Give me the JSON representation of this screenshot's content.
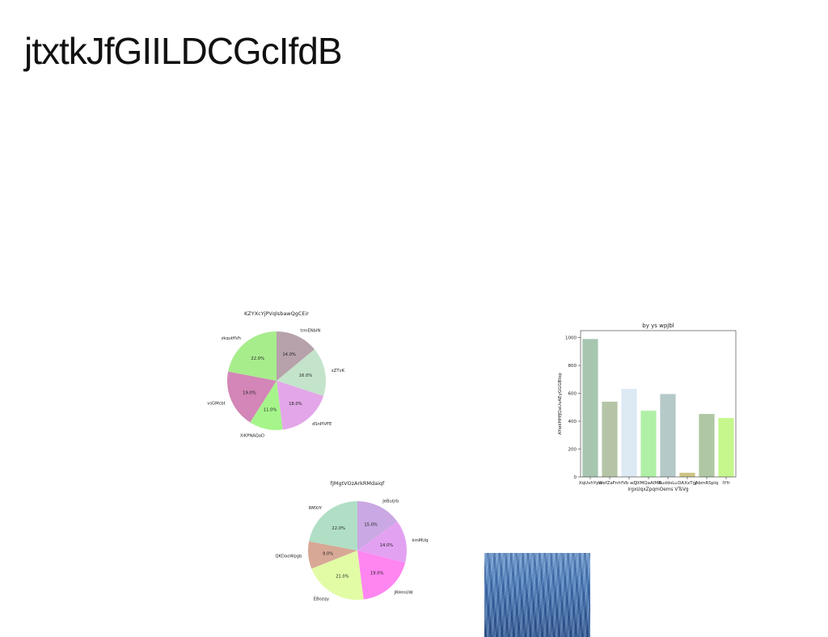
{
  "page": {
    "title": "jtxtkJfGIILDCGcIfdB"
  },
  "chart_data": [
    {
      "type": "pie",
      "title": "KZYXcYjPVqlsbawQgCEir",
      "labels": [
        "trmENblN",
        "xZTvK",
        "dSnPIVFE",
        "XiKPNAQaD",
        "vsGMcbt",
        "zkqutfiVh"
      ],
      "values": [
        14.0,
        16.0,
        18.0,
        11.0,
        19.0,
        22.0
      ],
      "value_labels": [
        "14.0%",
        "16.0%",
        "18.0%",
        "11.0%",
        "19.0%",
        "22.0%"
      ],
      "colors": [
        "#b7a1ab",
        "#c3e4cb",
        "#e3a6e8",
        "#a6f58b",
        "#d386b7",
        "#a8ed8c"
      ]
    },
    {
      "type": "pie",
      "title": "fJMgtVOzArkRMdaiqf",
      "labels": [
        "JeBuljrb",
        "kmMUqLVPE",
        "JRHmUW",
        "EBozqy",
        "QKDaoWpgb",
        "RMXIY"
      ],
      "values": [
        15.0,
        14.0,
        19.0,
        21.0,
        9.0,
        22.0
      ],
      "value_labels": [
        "15.0%",
        "14.0%",
        "19.0%",
        "21.0%",
        "9.0%",
        "22.0%"
      ],
      "colors": [
        "#c9a8e3",
        "#e3a1f2",
        "#ff85f0",
        "#e2fca6",
        "#d8a896",
        "#b0dfc5"
      ]
    },
    {
      "type": "bar",
      "title": "by ys wpJbl",
      "xlabel": "irgxUqxZpqmOems VTsVg",
      "ylabel": "AYwkHHfJQaUvAEyGGGBlop",
      "categories": [
        "XqUvhYpo",
        "WefZaFnh",
        "fVb wD",
        "JXMQaAIMB",
        "RuddsLu",
        "DAXxTgJ",
        "AbmRSplq",
        "IYfr"
      ],
      "values": [
        990,
        540,
        632,
        475,
        595,
        30,
        452,
        423
      ],
      "ylim": [
        0,
        1050
      ],
      "yticks": [
        0,
        200,
        400,
        600,
        800,
        1000
      ],
      "colors": [
        "#a6c6b0",
        "#b5c4a6",
        "#dde9f3",
        "#b0f0a6",
        "#b5c9c9",
        "#cdc584",
        "#afc7a2",
        "#c5f78d"
      ]
    }
  ],
  "photo": {
    "icon": "water-photo"
  }
}
